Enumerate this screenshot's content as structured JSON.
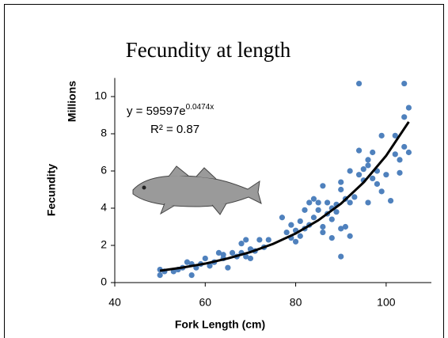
{
  "chart_data": {
    "type": "scatter",
    "title": "Fecundity at length",
    "x_label": "Fork Length (cm)",
    "y_label": "Fecundity",
    "y_unit_label": "Millions",
    "equation_base": "y = 59597e",
    "equation_exponent": "0.0474x",
    "r_squared": "R² = 0.87",
    "color": "#4f81bd",
    "x": [
      50,
      50,
      51,
      53,
      54,
      55,
      56,
      57,
      57,
      58,
      59,
      60,
      61,
      62,
      63,
      64,
      64,
      65,
      66,
      67,
      68,
      68,
      69,
      69,
      70,
      70,
      71,
      72,
      73,
      74,
      77,
      78,
      79,
      79,
      80,
      80,
      81,
      81,
      82,
      82,
      83,
      83,
      84,
      84,
      85,
      85,
      86,
      86,
      86,
      87,
      87,
      88,
      88,
      88,
      89,
      89,
      90,
      90,
      90,
      90,
      91,
      91,
      92,
      92,
      92,
      93,
      94,
      94,
      94,
      95,
      95,
      96,
      96,
      96,
      97,
      97,
      98,
      98,
      99,
      99,
      100,
      101,
      102,
      102,
      103,
      103,
      104,
      104,
      105,
      105,
      104
    ],
    "values": [
      0.7,
      0.4,
      0.6,
      0.6,
      0.7,
      0.8,
      1.1,
      1.0,
      0.4,
      0.8,
      1.0,
      1.3,
      0.9,
      1.1,
      1.6,
      1.5,
      1.3,
      0.8,
      1.6,
      1.4,
      2.1,
      1.6,
      2.3,
      1.4,
      1.3,
      1.8,
      1.7,
      2.3,
      1.9,
      2.3,
      3.5,
      2.7,
      3.1,
      2.4,
      2.2,
      2.8,
      3.3,
      2.5,
      3.9,
      2.9,
      4.3,
      3.1,
      4.5,
      3.5,
      3.9,
      4.3,
      3.0,
      5.2,
      2.7,
      4.3,
      3.7,
      4.0,
      3.4,
      2.4,
      4.2,
      3.8,
      5.4,
      5.0,
      2.9,
      1.4,
      3.0,
      4.5,
      4.3,
      2.5,
      6.0,
      4.6,
      10.7,
      7.1,
      5.8,
      6.1,
      5.5,
      6.6,
      6.3,
      4.3,
      5.6,
      7.0,
      6.0,
      5.3,
      7.9,
      4.9,
      5.8,
      4.4,
      7.9,
      6.9,
      5.9,
      6.6,
      10.7,
      7.3,
      9.4,
      7.0,
      8.9
    ],
    "trendline": {
      "color": "#000000",
      "x": [
        50,
        55,
        60,
        65,
        70,
        75,
        80,
        85,
        90,
        95,
        100,
        105
      ],
      "values": [
        0.64,
        0.81,
        1.02,
        1.3,
        1.64,
        2.08,
        2.64,
        3.35,
        4.24,
        5.38,
        6.82,
        8.64
      ]
    },
    "xlim": [
      40,
      110
    ],
    "ylim": [
      0,
      11
    ],
    "xticks": [
      40,
      60,
      80,
      100
    ],
    "yticks": [
      0,
      2,
      4,
      6,
      8,
      10
    ]
  }
}
